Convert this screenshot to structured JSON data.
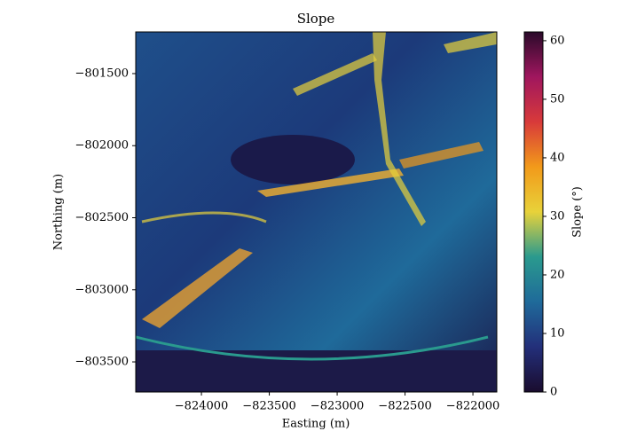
{
  "chart_data": {
    "type": "image",
    "title": "Slope",
    "xlabel": "Easting (m)",
    "ylabel": "Northing (m)",
    "xlim": [
      -824484,
      -821824
    ],
    "ylim": [
      -803709,
      -801211
    ],
    "xticks": [
      {
        "value": -824000,
        "label": "−824000"
      },
      {
        "value": -823500,
        "label": "−823500"
      },
      {
        "value": -823000,
        "label": "−823000"
      },
      {
        "value": -822500,
        "label": "−822500"
      },
      {
        "value": -822000,
        "label": "−822000"
      }
    ],
    "yticks": [
      {
        "value": -801500,
        "label": "−801500"
      },
      {
        "value": -802000,
        "label": "−802000"
      },
      {
        "value": -802500,
        "label": "−802500"
      },
      {
        "value": -803000,
        "label": "−803000"
      },
      {
        "value": -803500,
        "label": "−803500"
      }
    ],
    "colorbar": {
      "label": "Slope (°)",
      "lim": [
        0,
        61.5
      ],
      "ticks": [
        0,
        10,
        20,
        30,
        40,
        50,
        60
      ],
      "colors": [
        "#1a0c2e",
        "#232f7a",
        "#1f6a9a",
        "#2a9a8e",
        "#e8d23a",
        "#f29a1a",
        "#d83a3a",
        "#a0165e",
        "#2a0a2a"
      ]
    }
  }
}
